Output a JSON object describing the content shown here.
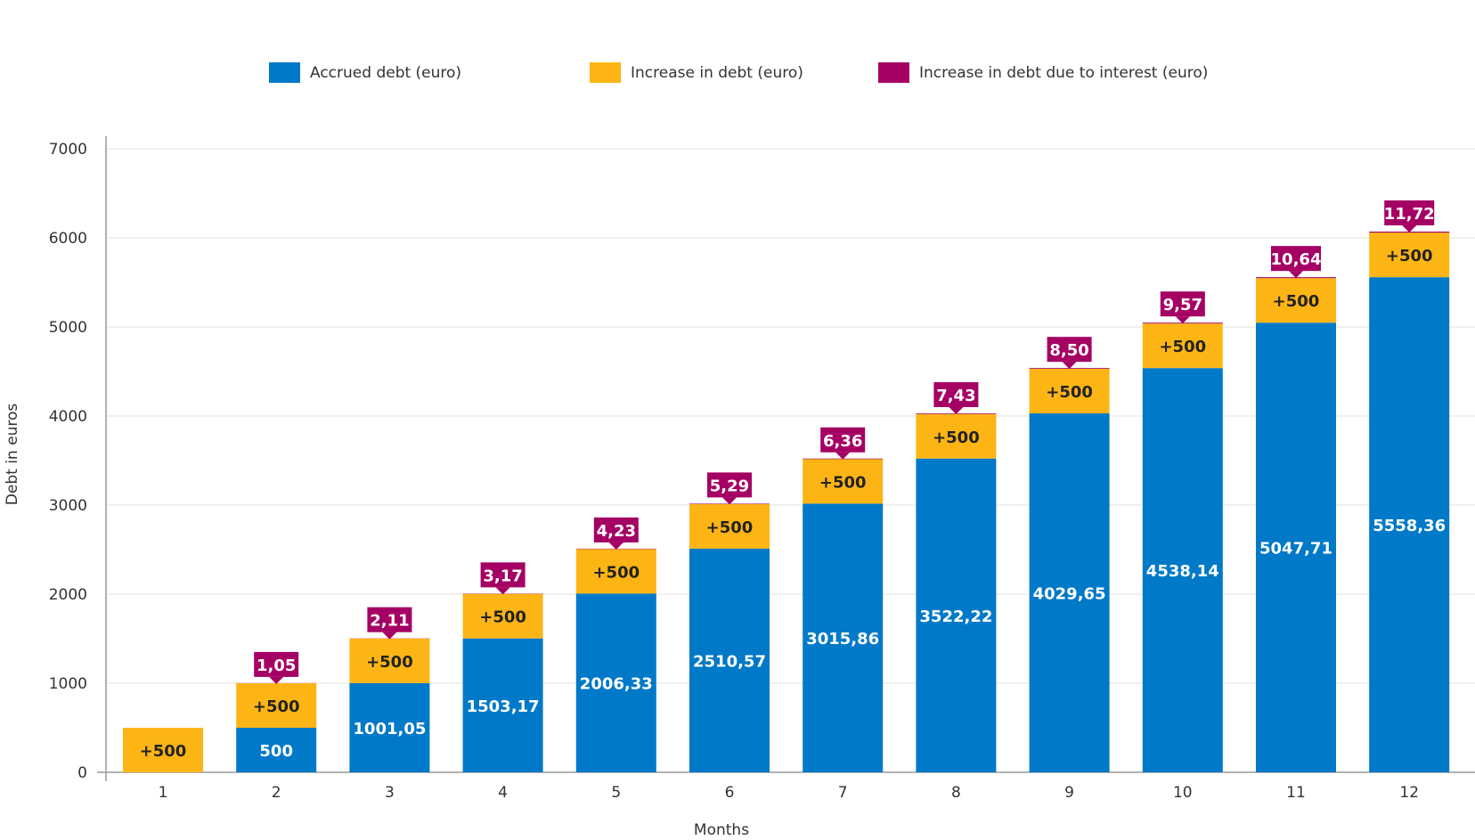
{
  "chart_data": {
    "type": "bar",
    "stacked": true,
    "xlabel": "Months",
    "ylabel": "Debt in euros",
    "ylim": [
      0,
      7000
    ],
    "yticks": [
      0,
      1000,
      2000,
      3000,
      4000,
      5000,
      6000,
      7000
    ],
    "grid": true,
    "legend_placement": "top",
    "categories": [
      "1",
      "2",
      "3",
      "4",
      "5",
      "6",
      "7",
      "8",
      "9",
      "10",
      "11",
      "12"
    ],
    "series": [
      {
        "name": "Accrued debt (euro)",
        "color": "#0079C8",
        "values": [
          0,
          500,
          1001.05,
          1503.17,
          2006.33,
          2510.57,
          3015.86,
          3522.22,
          4029.65,
          4538.14,
          5047.71,
          5558.36
        ],
        "labels": [
          "",
          "500",
          "1001,05",
          "1503,17",
          "2006,33",
          "2510,57",
          "3015,86",
          "3522,22",
          "4029,65",
          "4538,14",
          "5047,71",
          "5558,36"
        ]
      },
      {
        "name": "Increase in debt (euro)",
        "color": "#FDB515",
        "values": [
          500,
          500,
          500,
          500,
          500,
          500,
          500,
          500,
          500,
          500,
          500,
          500
        ],
        "labels": [
          "+500",
          "+500",
          "+500",
          "+500",
          "+500",
          "+500",
          "+500",
          "+500",
          "+500",
          "+500",
          "+500",
          "+500"
        ]
      },
      {
        "name": "Increase in debt due to interest (euro)",
        "color": "#A50064",
        "values": [
          0,
          1.05,
          2.11,
          3.17,
          4.23,
          5.29,
          6.36,
          7.43,
          8.5,
          9.57,
          10.64,
          11.72
        ],
        "labels": [
          "",
          "1,05",
          "2,11",
          "3,17",
          "4,23",
          "5,29",
          "6,36",
          "7,43",
          "8,50",
          "9,57",
          "10,64",
          "11,72"
        ]
      }
    ]
  }
}
